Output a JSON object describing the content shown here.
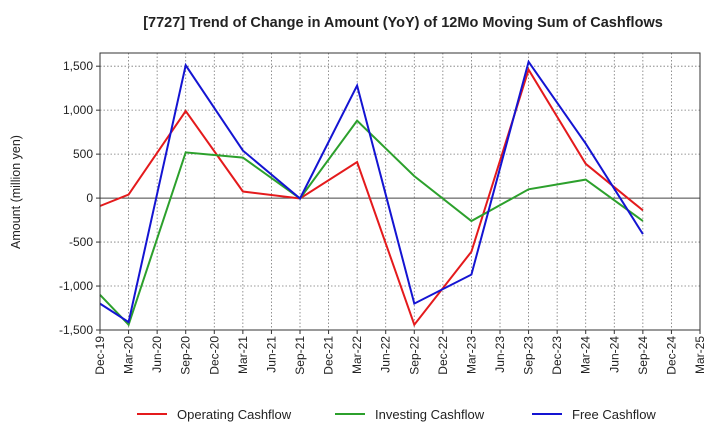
{
  "chart_data": {
    "type": "line",
    "title": "[7727]  Trend of Change in Amount (YoY) of 12Mo Moving Sum of Cashflows",
    "xlabel": "",
    "ylabel": "Amount (million yen)",
    "ylim": [
      -1500,
      1650
    ],
    "yticks": [
      1500,
      1000,
      500,
      0,
      -500,
      -1000,
      -1500
    ],
    "ytick_labels": [
      "1,500",
      "1,000",
      "500",
      "0",
      "-500",
      "-1,000",
      "-1,500"
    ],
    "categories": [
      "Dec-19",
      "Mar-20",
      "Jun-20",
      "Sep-20",
      "Dec-20",
      "Mar-21",
      "Jun-21",
      "Sep-21",
      "Dec-21",
      "Mar-22",
      "Jun-22",
      "Sep-22",
      "Dec-22",
      "Mar-23",
      "Jun-23",
      "Sep-23",
      "Dec-23",
      "Mar-24",
      "Jun-24",
      "Sep-24",
      "Dec-24",
      "Mar-25"
    ],
    "grid": true,
    "legend_position": "bottom",
    "series": [
      {
        "name": "Operating Cashflow",
        "color": "#e41a1c",
        "values": [
          -90,
          40,
          null,
          990,
          null,
          75,
          null,
          -5,
          null,
          410,
          null,
          -1440,
          null,
          -610,
          null,
          1460,
          null,
          390,
          null,
          -140,
          null,
          null
        ]
      },
      {
        "name": "Investing Cashflow",
        "color": "#2ca02c",
        "values": [
          -1100,
          -1440,
          null,
          520,
          null,
          460,
          null,
          -5,
          null,
          880,
          null,
          250,
          null,
          -260,
          null,
          100,
          null,
          210,
          null,
          -260,
          null,
          null
        ]
      },
      {
        "name": "Free Cashflow",
        "color": "#1414d2",
        "values": [
          -1200,
          -1410,
          null,
          1510,
          null,
          540,
          null,
          -5,
          null,
          1280,
          null,
          -1200,
          null,
          -870,
          null,
          1550,
          null,
          620,
          null,
          -410,
          null,
          null
        ]
      }
    ]
  }
}
